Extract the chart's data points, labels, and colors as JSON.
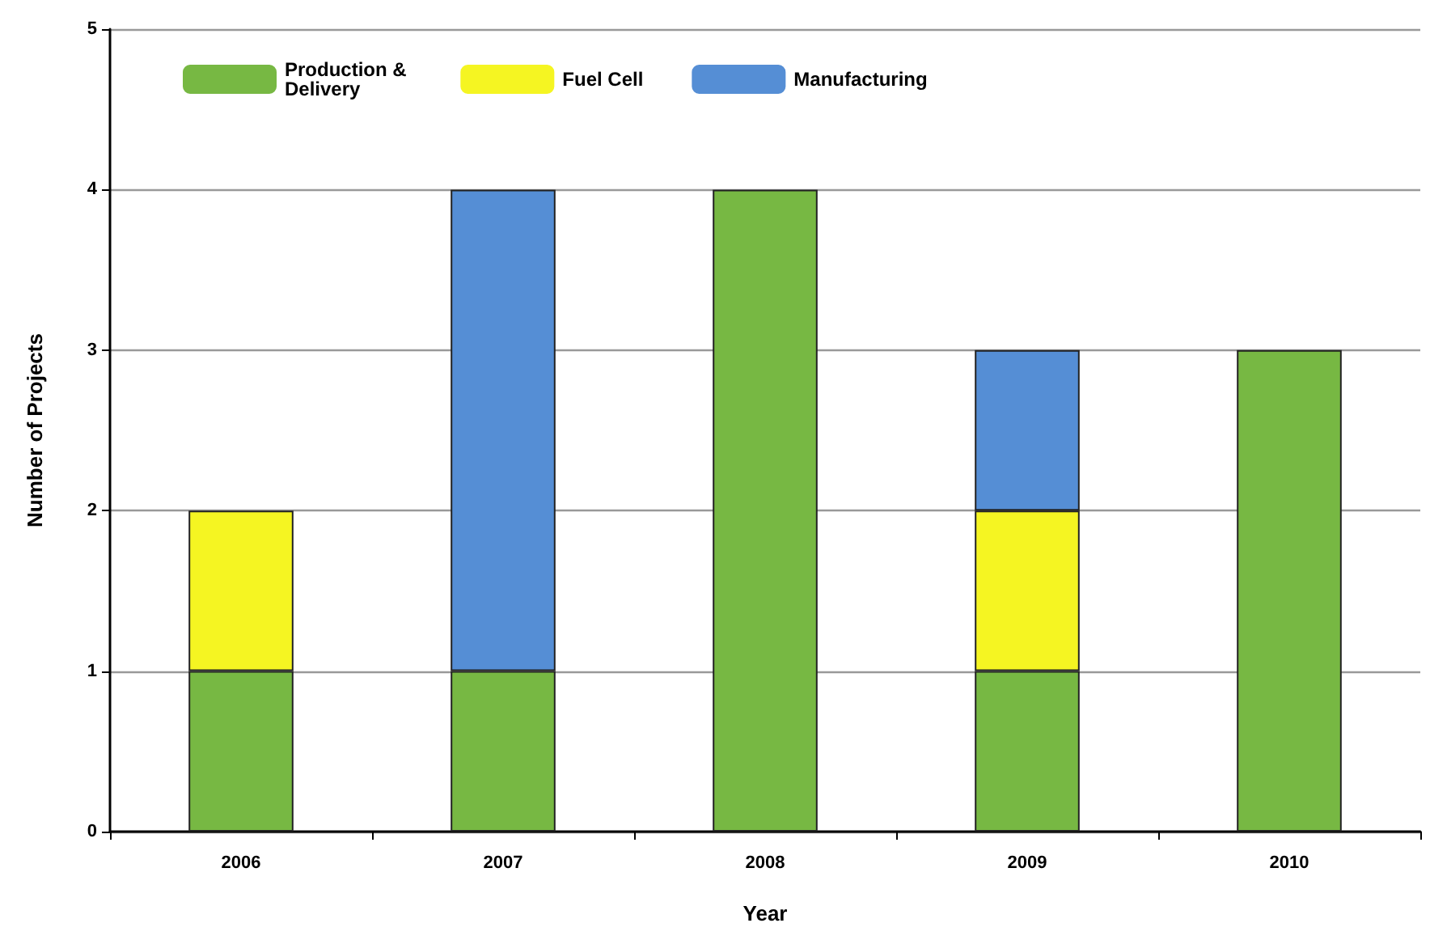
{
  "chart_data": {
    "type": "bar",
    "stacked": true,
    "xlabel": "Year",
    "ylabel": "Number of Projects",
    "categories": [
      "2006",
      "2007",
      "2008",
      "2009",
      "2010"
    ],
    "series": [
      {
        "name": "Production & Delivery",
        "color": "#77b843",
        "values": [
          1,
          1,
          4,
          1,
          3
        ]
      },
      {
        "name": "Fuel Cell",
        "color": "#f5f522",
        "values": [
          1,
          null,
          null,
          1,
          null
        ]
      },
      {
        "name": "Manufacturing",
        "color": "#558ed5",
        "values": [
          null,
          3,
          null,
          1,
          null
        ]
      }
    ],
    "ylim": [
      0,
      5
    ],
    "yticks": [
      0,
      1,
      2,
      3,
      4,
      5
    ],
    "grid": "y",
    "legend": "top left"
  }
}
